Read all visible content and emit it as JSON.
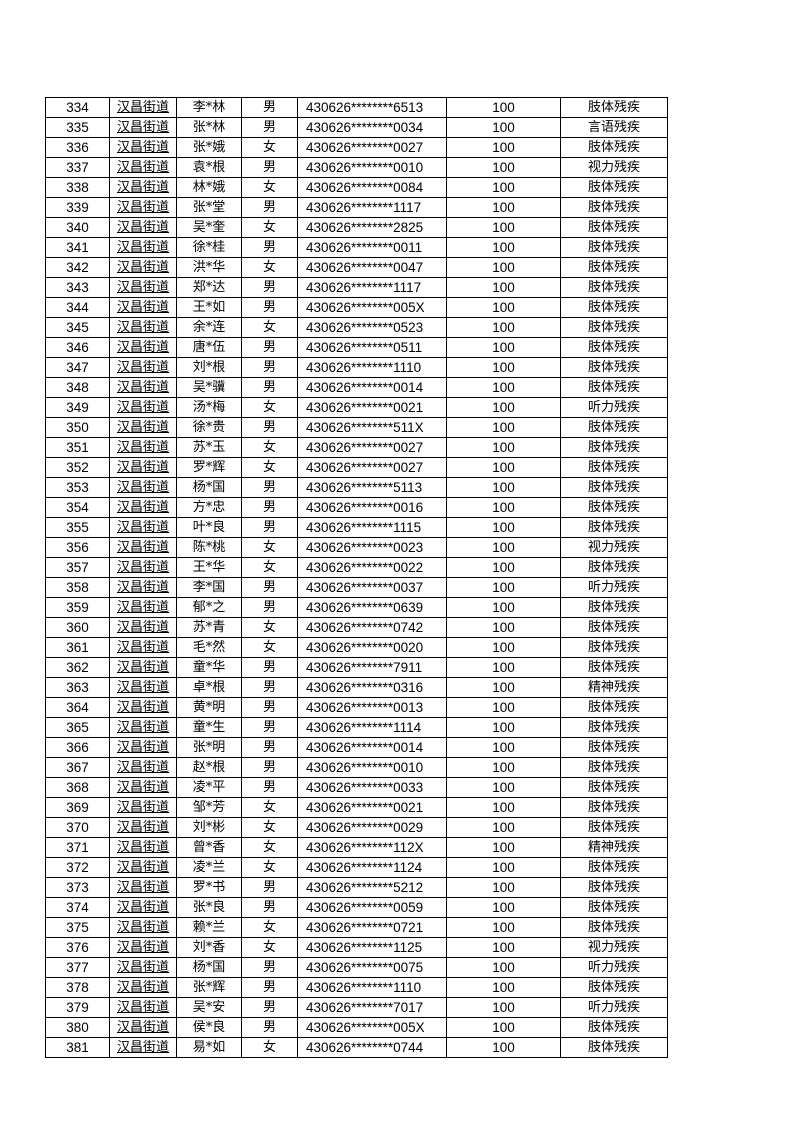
{
  "table": {
    "columns": [
      "num",
      "street",
      "name",
      "sex",
      "id",
      "amount",
      "type"
    ],
    "rows": [
      [
        "334",
        "汉昌街道",
        "李*林",
        "男",
        "430626********6513",
        "100",
        "肢体残疾"
      ],
      [
        "335",
        "汉昌街道",
        "张*林",
        "男",
        "430626********0034",
        "100",
        "言语残疾"
      ],
      [
        "336",
        "汉昌街道",
        "张*娥",
        "女",
        "430626********0027",
        "100",
        "肢体残疾"
      ],
      [
        "337",
        "汉昌街道",
        "袁*根",
        "男",
        "430626********0010",
        "100",
        "视力残疾"
      ],
      [
        "338",
        "汉昌街道",
        "林*娥",
        "女",
        "430626********0084",
        "100",
        "肢体残疾"
      ],
      [
        "339",
        "汉昌街道",
        "张*堂",
        "男",
        "430626********1117",
        "100",
        "肢体残疾"
      ],
      [
        "340",
        "汉昌街道",
        "吴*奎",
        "女",
        "430626********2825",
        "100",
        "肢体残疾"
      ],
      [
        "341",
        "汉昌街道",
        "徐*桂",
        "男",
        "430626********0011",
        "100",
        "肢体残疾"
      ],
      [
        "342",
        "汉昌街道",
        "洪*华",
        "女",
        "430626********0047",
        "100",
        "肢体残疾"
      ],
      [
        "343",
        "汉昌街道",
        "郑*达",
        "男",
        "430626********1117",
        "100",
        "肢体残疾"
      ],
      [
        "344",
        "汉昌街道",
        "王*如",
        "男",
        "430626********005X",
        "100",
        "肢体残疾"
      ],
      [
        "345",
        "汉昌街道",
        "余*连",
        "女",
        "430626********0523",
        "100",
        "肢体残疾"
      ],
      [
        "346",
        "汉昌街道",
        "唐*伍",
        "男",
        "430626********0511",
        "100",
        "肢体残疾"
      ],
      [
        "347",
        "汉昌街道",
        "刘*根",
        "男",
        "430626********1110",
        "100",
        "肢体残疾"
      ],
      [
        "348",
        "汉昌街道",
        "吴*骥",
        "男",
        "430626********0014",
        "100",
        "肢体残疾"
      ],
      [
        "349",
        "汉昌街道",
        "汤*梅",
        "女",
        "430626********0021",
        "100",
        "听力残疾"
      ],
      [
        "350",
        "汉昌街道",
        "徐*贵",
        "男",
        "430626********511X",
        "100",
        "肢体残疾"
      ],
      [
        "351",
        "汉昌街道",
        "苏*玉",
        "女",
        "430626********0027",
        "100",
        "肢体残疾"
      ],
      [
        "352",
        "汉昌街道",
        "罗*辉",
        "女",
        "430626********0027",
        "100",
        "肢体残疾"
      ],
      [
        "353",
        "汉昌街道",
        "杨*国",
        "男",
        "430626********5113",
        "100",
        "肢体残疾"
      ],
      [
        "354",
        "汉昌街道",
        "方*忠",
        "男",
        "430626********0016",
        "100",
        "肢体残疾"
      ],
      [
        "355",
        "汉昌街道",
        "叶*良",
        "男",
        "430626********1115",
        "100",
        "肢体残疾"
      ],
      [
        "356",
        "汉昌街道",
        "陈*桃",
        "女",
        "430626********0023",
        "100",
        "视力残疾"
      ],
      [
        "357",
        "汉昌街道",
        "王*华",
        "女",
        "430626********0022",
        "100",
        "肢体残疾"
      ],
      [
        "358",
        "汉昌街道",
        "李*国",
        "男",
        "430626********0037",
        "100",
        "听力残疾"
      ],
      [
        "359",
        "汉昌街道",
        "郁*之",
        "男",
        "430626********0639",
        "100",
        "肢体残疾"
      ],
      [
        "360",
        "汉昌街道",
        "苏*青",
        "女",
        "430626********0742",
        "100",
        "肢体残疾"
      ],
      [
        "361",
        "汉昌街道",
        "毛*然",
        "女",
        "430626********0020",
        "100",
        "肢体残疾"
      ],
      [
        "362",
        "汉昌街道",
        "童*华",
        "男",
        "430626********7911",
        "100",
        "肢体残疾"
      ],
      [
        "363",
        "汉昌街道",
        "卓*根",
        "男",
        "430626********0316",
        "100",
        "精神残疾"
      ],
      [
        "364",
        "汉昌街道",
        "黄*明",
        "男",
        "430626********0013",
        "100",
        "肢体残疾"
      ],
      [
        "365",
        "汉昌街道",
        "童*生",
        "男",
        "430626********1114",
        "100",
        "肢体残疾"
      ],
      [
        "366",
        "汉昌街道",
        "张*明",
        "男",
        "430626********0014",
        "100",
        "肢体残疾"
      ],
      [
        "367",
        "汉昌街道",
        "赵*根",
        "男",
        "430626********0010",
        "100",
        "肢体残疾"
      ],
      [
        "368",
        "汉昌街道",
        "凌*平",
        "男",
        "430626********0033",
        "100",
        "肢体残疾"
      ],
      [
        "369",
        "汉昌街道",
        "邹*芳",
        "女",
        "430626********0021",
        "100",
        "肢体残疾"
      ],
      [
        "370",
        "汉昌街道",
        "刘*彬",
        "女",
        "430626********0029",
        "100",
        "肢体残疾"
      ],
      [
        "371",
        "汉昌街道",
        "曾*香",
        "女",
        "430626********112X",
        "100",
        "精神残疾"
      ],
      [
        "372",
        "汉昌街道",
        "凌*兰",
        "女",
        "430626********1124",
        "100",
        "肢体残疾"
      ],
      [
        "373",
        "汉昌街道",
        "罗*书",
        "男",
        "430626********5212",
        "100",
        "肢体残疾"
      ],
      [
        "374",
        "汉昌街道",
        "张*良",
        "男",
        "430626********0059",
        "100",
        "肢体残疾"
      ],
      [
        "375",
        "汉昌街道",
        "赖*兰",
        "女",
        "430626********0721",
        "100",
        "肢体残疾"
      ],
      [
        "376",
        "汉昌街道",
        "刘*香",
        "女",
        "430626********1125",
        "100",
        "视力残疾"
      ],
      [
        "377",
        "汉昌街道",
        "杨*国",
        "男",
        "430626********0075",
        "100",
        "听力残疾"
      ],
      [
        "378",
        "汉昌街道",
        "张*辉",
        "男",
        "430626********1110",
        "100",
        "肢体残疾"
      ],
      [
        "379",
        "汉昌街道",
        "吴*安",
        "男",
        "430626********7017",
        "100",
        "听力残疾"
      ],
      [
        "380",
        "汉昌街道",
        "侯*良",
        "男",
        "430626********005X",
        "100",
        "肢体残疾"
      ],
      [
        "381",
        "汉昌街道",
        "易*如",
        "女",
        "430626********0744",
        "100",
        "肢体残疾"
      ]
    ]
  }
}
